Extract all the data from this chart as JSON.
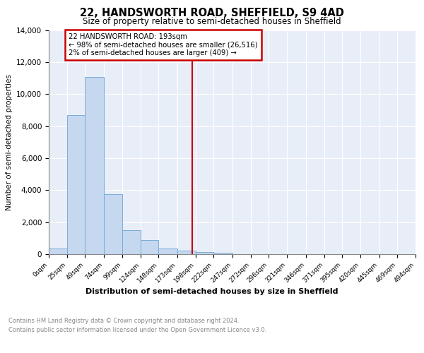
{
  "title1": "22, HANDSWORTH ROAD, SHEFFIELD, S9 4AD",
  "title2": "Size of property relative to semi-detached houses in Sheffield",
  "xlabel": "Distribution of semi-detached houses by size in Sheffield",
  "ylabel": "Number of semi-detached properties",
  "bin_edges": [
    0,
    25,
    49,
    74,
    99,
    124,
    148,
    173,
    198,
    222,
    247,
    272,
    296,
    321,
    346,
    371,
    395,
    420,
    445,
    469,
    494
  ],
  "bar_heights": [
    350,
    8700,
    11050,
    3750,
    1500,
    900,
    350,
    200,
    150,
    80,
    0,
    0,
    0,
    0,
    0,
    0,
    0,
    0,
    0,
    0
  ],
  "bar_color": "#c5d8f0",
  "bar_edgecolor": "#7aacd6",
  "property_size": 193,
  "vline_color": "#cc0000",
  "annotation_line1": "22 HANDSWORTH ROAD: 193sqm",
  "annotation_line2": "← 98% of semi-detached houses are smaller (26,516)",
  "annotation_line3": "2% of semi-detached houses are larger (409) →",
  "annotation_box_color": "#ffffff",
  "annotation_box_edgecolor": "#cc0000",
  "ylim": [
    0,
    14000
  ],
  "yticks": [
    0,
    2000,
    4000,
    6000,
    8000,
    10000,
    12000,
    14000
  ],
  "background_color": "#e8eef8",
  "footer1": "Contains HM Land Registry data © Crown copyright and database right 2024.",
  "footer2": "Contains public sector information licensed under the Open Government Licence v3.0."
}
